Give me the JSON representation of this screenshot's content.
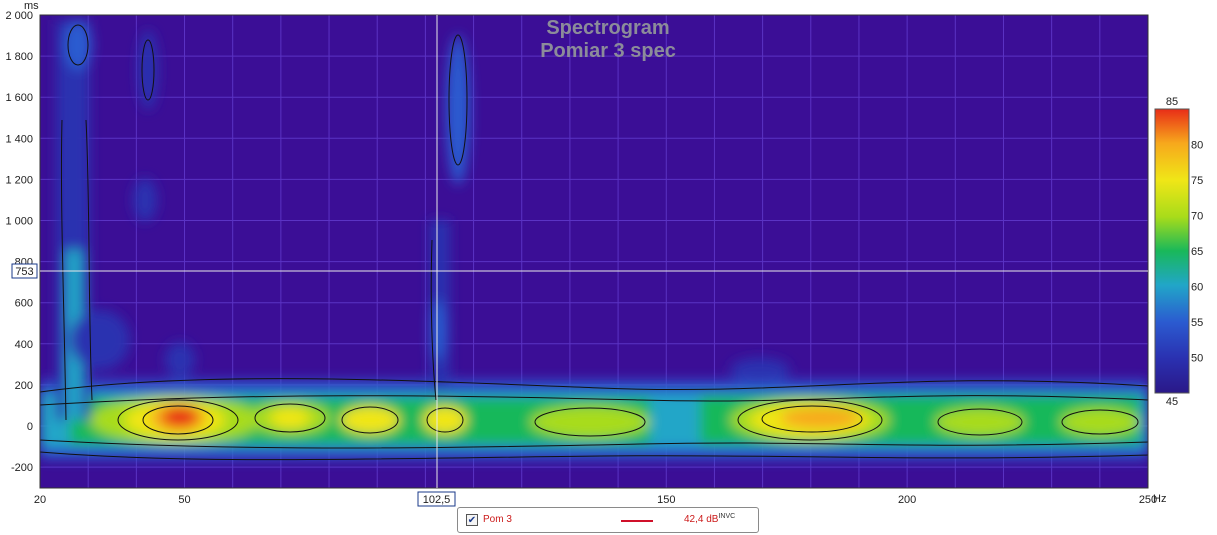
{
  "chart_data": {
    "type": "heatmap",
    "title": "Spectrogram",
    "subtitle": "Pomiar 3 spec",
    "y_unit": "ms",
    "x_unit": "Hz",
    "x_ticks": [
      "20",
      "50",
      "150",
      "200",
      "250"
    ],
    "y_ticks": [
      "2 000",
      "1 800",
      "1 600",
      "1 400",
      "1 200",
      "1 000",
      "800",
      "600",
      "400",
      "200",
      "0",
      "-200"
    ],
    "xlim": [
      20,
      250
    ],
    "ylim": [
      -300,
      2000
    ],
    "colorbar_ticks": [
      "85",
      "80",
      "75",
      "70",
      "65",
      "60",
      "55",
      "50",
      "45"
    ],
    "colorbar_range": [
      45,
      85
    ],
    "cursor": {
      "x_readout": "102,5",
      "y_readout": "753"
    },
    "grid": true
  },
  "colors": {
    "background": "#3b0e96",
    "grid": "#5b33c4",
    "palette": [
      "#2a1888",
      "#2b5bd0",
      "#21a6c8",
      "#19b85a",
      "#a8dc1a",
      "#f0e617",
      "#f7a81c",
      "#e82d17"
    ]
  },
  "legend": {
    "checked": "✔",
    "name": "Pom 3",
    "value": "42,4 dB",
    "suffix": "INVC"
  }
}
